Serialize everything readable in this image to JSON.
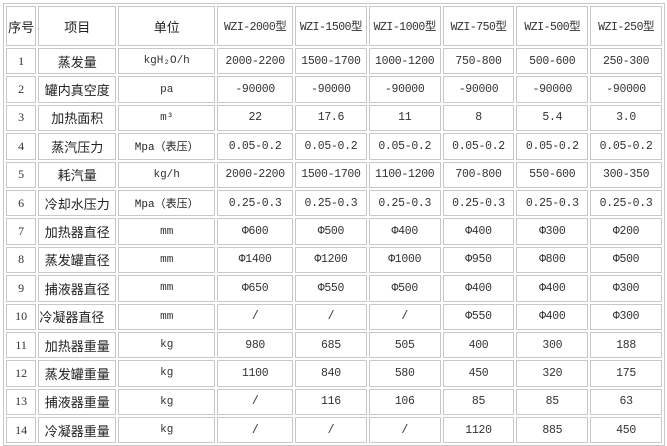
{
  "table": {
    "headers": [
      "序号",
      "项目",
      "单位",
      "WZI-2000型",
      "WZI-1500型",
      "WZI-1000型",
      "WZI-750型",
      "WZI-500型",
      "WZI-250型"
    ],
    "rows": [
      {
        "no": "1",
        "item": "蒸发量",
        "unit": "kgH₂O/h",
        "values": [
          "2000-2200",
          "1500-1700",
          "1000-1200",
          "750-800",
          "500-600",
          "250-300"
        ]
      },
      {
        "no": "2",
        "item": "罐内真空度",
        "unit": "pa",
        "values": [
          "-90000",
          "-90000",
          "-90000",
          "-90000",
          "-90000",
          "-90000"
        ]
      },
      {
        "no": "3",
        "item": "加热面积",
        "unit": "m³",
        "values": [
          "22",
          "17.6",
          "11",
          "8",
          "5.4",
          "3.0"
        ]
      },
      {
        "no": "4",
        "item": "蒸汽压力",
        "unit": "Mpa（表压）",
        "values": [
          "0.05-0.2",
          "0.05-0.2",
          "0.05-0.2",
          "0.05-0.2",
          "0.05-0.2",
          "0.05-0.2"
        ]
      },
      {
        "no": "5",
        "item": "耗汽量",
        "unit": "kg/h",
        "values": [
          "2000-2200",
          "1500-1700",
          "1100-1200",
          "700-800",
          "550-600",
          "300-350"
        ]
      },
      {
        "no": "6",
        "item": "冷却水压力",
        "unit": "Mpa（表压）",
        "values": [
          "0.25-0.3",
          "0.25-0.3",
          "0.25-0.3",
          "0.25-0.3",
          "0.25-0.3",
          "0.25-0.3"
        ]
      },
      {
        "no": "7",
        "item": "加热器直径",
        "unit": "mm",
        "values": [
          "Φ600",
          "Φ500",
          "Φ400",
          "Φ400",
          "Φ300",
          "Φ200"
        ]
      },
      {
        "no": "8",
        "item": "蒸发罐直径",
        "unit": "mm",
        "values": [
          "Φ1400",
          "Φ1200",
          "Φ1000",
          "Φ950",
          "Φ800",
          "Φ500"
        ]
      },
      {
        "no": "9",
        "item": "捕液器直径",
        "unit": "mm",
        "values": [
          "Φ650",
          "Φ550",
          "Φ500",
          "Φ400",
          "Φ400",
          "Φ300"
        ]
      },
      {
        "no": "10",
        "item": "冷凝器直径",
        "unit": "mm",
        "values": [
          "/",
          "/",
          "/",
          "Φ550",
          "Φ400",
          "Φ300"
        ]
      },
      {
        "no": "11",
        "item": "加热器重量",
        "unit": "kg",
        "values": [
          "980",
          "685",
          "505",
          "400",
          "300",
          "188"
        ]
      },
      {
        "no": "12",
        "item": "蒸发罐重量",
        "unit": "kg",
        "values": [
          "1100",
          "840",
          "580",
          "450",
          "320",
          "175"
        ]
      },
      {
        "no": "13",
        "item": "捕液器重量",
        "unit": "kg",
        "values": [
          "/",
          "116",
          "106",
          "85",
          "85",
          "63"
        ]
      },
      {
        "no": "14",
        "item": "冷凝器重量",
        "unit": "kg",
        "values": [
          "/",
          "/",
          "/",
          "1120",
          "885",
          "450"
        ]
      }
    ]
  },
  "colors": {
    "border": "#c8c8c8",
    "text": "#333333",
    "background": "#ffffff"
  }
}
